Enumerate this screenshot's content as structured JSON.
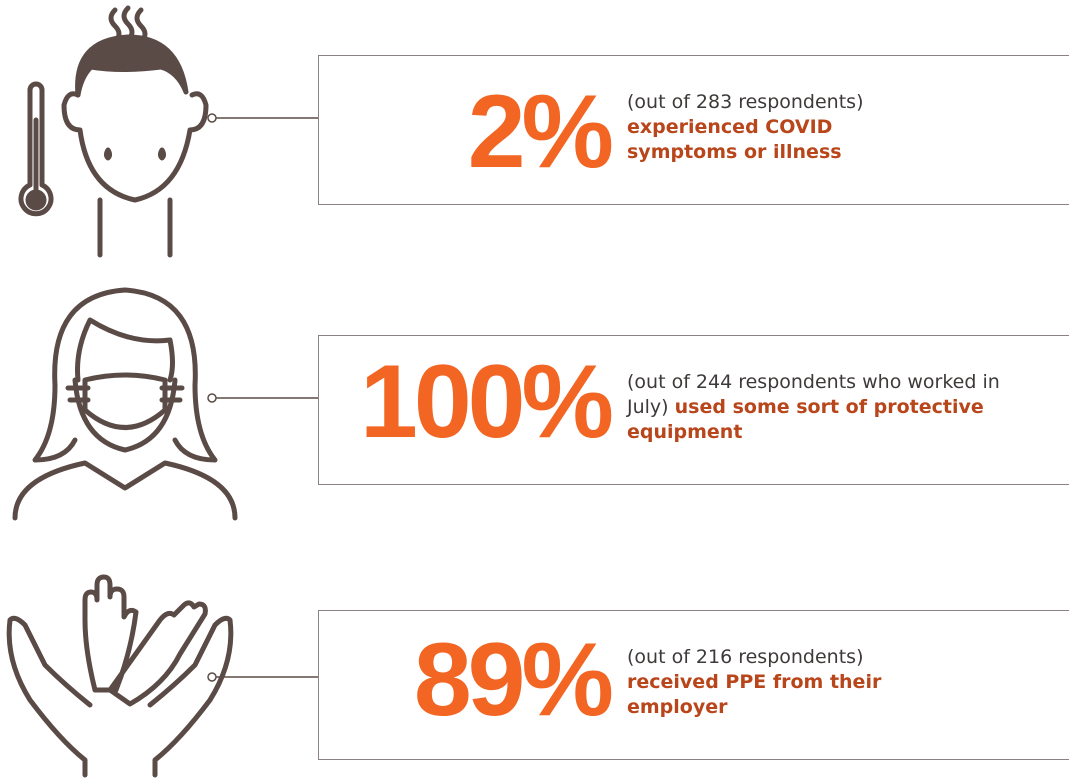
{
  "items": [
    {
      "stat": "2%",
      "note": "(out of 283 respondents)",
      "highlight": "experienced COVID symptoms or illness"
    },
    {
      "stat": "100%",
      "note": "(out of 244 respondents who worked in July)",
      "highlight": "used some sort of protective equipment"
    },
    {
      "stat": "89%",
      "note": "(out of 216 respondents)",
      "highlight": "received PPE from their employer"
    }
  ]
}
